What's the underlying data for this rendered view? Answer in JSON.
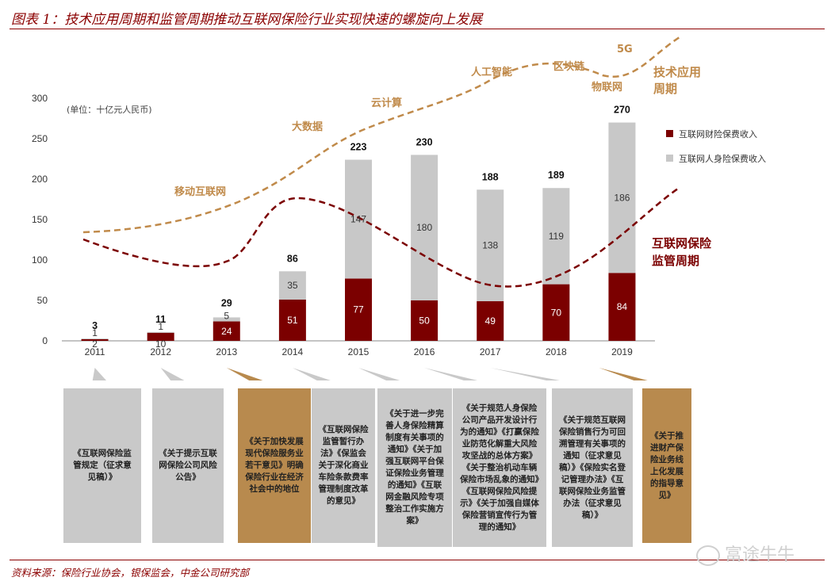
{
  "title": "图表 1：技术应用周期和监管周期推动互联网保险行业实现快速的螺旋向上发展",
  "source": "资料来源：保险行业协会，银保监会，中金公司研究部",
  "watermark": "富途牛牛",
  "colors": {
    "property": "#7B0000",
    "life": "#C8C8C8",
    "tech_curve": "#C08A4A",
    "reg_curve": "#7B0000",
    "title": "#8B0000",
    "gold_box": "#B88A4E",
    "grey_box": "#C9C9C9"
  },
  "chart_data": {
    "type": "bar",
    "stacked": true,
    "unit_note": "(单位：十亿元人民币)",
    "categories": [
      "2011",
      "2012",
      "2013",
      "2014",
      "2015",
      "2016",
      "2017",
      "2018",
      "2019"
    ],
    "series": [
      {
        "name": "互联网财险保费收入",
        "values": [
          2,
          10,
          24,
          51,
          77,
          50,
          49,
          70,
          84
        ]
      },
      {
        "name": "互联网人身险保费收入",
        "values": [
          1,
          1,
          5,
          35,
          147,
          180,
          138,
          119,
          186
        ]
      }
    ],
    "totals": [
      3,
      11,
      29,
      86,
      223,
      230,
      188,
      189,
      270
    ],
    "ylim": [
      0,
      300
    ],
    "yticks": [
      0,
      50,
      100,
      150,
      200,
      250,
      300
    ],
    "legend_position": "top-right",
    "curves": [
      {
        "name": "技术应用周期",
        "labels": [
          "移动互联网",
          "大数据",
          "云计算",
          "人工智能",
          "区块链",
          "物联网",
          "5G"
        ]
      },
      {
        "name": "互联网保险监管周期"
      }
    ]
  },
  "curve_titles": {
    "tech": [
      "技术应用",
      "周期"
    ],
    "reg": [
      "互联网保险",
      "监管周期"
    ]
  },
  "policies": [
    {
      "year": "2011",
      "style": "grey",
      "text": "《互联网保险监管规定（征求意见稿）》"
    },
    {
      "year": "2012",
      "style": "grey",
      "text": "《关于提示互联网保险公司风险公告》"
    },
    {
      "year": "2013",
      "style": "gold",
      "text": "《关于加快发展现代保险服务业若干意见》明确保险行业在经济社会中的地位"
    },
    {
      "year": "2014",
      "style": "grey",
      "text": "《互联网保险监管暂行办法》《保监会关于深化商业车险条款费率管理制度改革的意见》"
    },
    {
      "year": "2015",
      "style": "grey",
      "text": "《关于进一步完善人身保险精算制度有关事项的通知》《关于加强互联网平台保证保险业务管理的通知》《互联网金融风险专项整治工作实施方案》"
    },
    {
      "year": "2016",
      "style": "grey",
      "text": "《关于规范人身保险公司产品开发设计行为的通知》《打赢保险业防范化解重大风险攻坚战的总体方案》《关于整治机动车辆保险市场乱象的通知》《互联网保险风险提示》《关于加强自媒体保险营销宣传行为管理的通知》"
    },
    {
      "year": "2017",
      "style": "grey",
      "text": "《关于规范互联网保险销售行为可回溯管理有关事项的通知（征求意见稿）》《保险实名登记管理办法》《互联网保险业务监管办法（征求意见稿）》"
    },
    {
      "year": "2018",
      "style": "gold",
      "text": "《关于推进财产保险业务线上化发展的指导意见》"
    }
  ]
}
